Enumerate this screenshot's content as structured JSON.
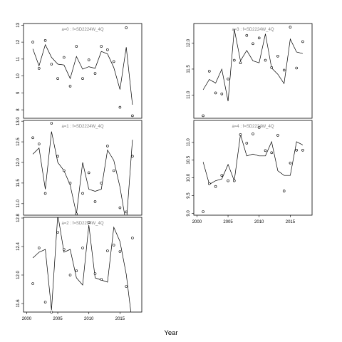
{
  "chart_data": {
    "type": "line",
    "xlabel": "Year",
    "panels": [
      {
        "label": "a=0 : f=SD2224W_4Q",
        "xlim": [
          1999.5,
          2018.5
        ],
        "ylim": [
          7.5,
          13.1
        ],
        "yticks": [
          8,
          9,
          10,
          11,
          12,
          13
        ],
        "xticks": [],
        "x": [
          2001,
          2002,
          2003,
          2004,
          2005,
          2006,
          2007,
          2008,
          2009,
          2010,
          2011,
          2012,
          2013,
          2014,
          2015,
          2016,
          2017
        ],
        "fitted": [
          11.6,
          10.6,
          11.85,
          11.1,
          10.7,
          10.65,
          9.85,
          11.15,
          10.4,
          10.55,
          10.45,
          11.45,
          11.3,
          10.5,
          9.2,
          11.7,
          8.3
        ],
        "observed": [
          12.0,
          10.45,
          12.1,
          10.7,
          9.85,
          11.1,
          9.4,
          11.75,
          9.85,
          10.95,
          10.15,
          11.75,
          11.55,
          10.85,
          8.15,
          12.85,
          7.65
        ]
      },
      {
        "label": "a=1 : f=SD2224W_4Q",
        "xlim": [
          1999.5,
          2018.5
        ],
        "ylim": [
          10.72,
          13.02
        ],
        "yticks": [
          11.0,
          11.5,
          12.0,
          12.5,
          13.0
        ],
        "xticks": [],
        "x": [
          2001,
          2002,
          2003,
          2004,
          2005,
          2006,
          2007,
          2008,
          2009,
          2010,
          2011,
          2012,
          2013,
          2014,
          2015,
          2016,
          2017
        ],
        "fitted": [
          12.2,
          12.35,
          11.35,
          12.75,
          12.0,
          11.8,
          11.45,
          10.75,
          12.0,
          11.35,
          11.3,
          11.35,
          12.3,
          12.05,
          11.4,
          10.5,
          12.55
        ],
        "observed": [
          12.6,
          12.45,
          11.25,
          12.95,
          12.15,
          11.8,
          11.5,
          10.75,
          11.25,
          11.75,
          11.05,
          11.5,
          12.4,
          11.8,
          10.9,
          10.8,
          12.15
        ]
      },
      {
        "label": "a=2 : f=SD2224W_4Q",
        "xlim": [
          1999.5,
          2018.5
        ],
        "ylim": [
          11.48,
          12.81
        ],
        "yticks": [
          11.6,
          12.0,
          12.4,
          12.8
        ],
        "xticks": [
          2000,
          2005,
          2010,
          2015
        ],
        "x": [
          2001,
          2002,
          2003,
          2004,
          2005,
          2006,
          2007,
          2008,
          2009,
          2010,
          2011,
          2012,
          2013,
          2014,
          2015,
          2016,
          2017
        ],
        "fitted": [
          12.24,
          12.32,
          12.36,
          11.51,
          12.85,
          12.32,
          12.36,
          11.96,
          11.86,
          12.7,
          11.96,
          11.93,
          11.9,
          12.67,
          12.47,
          12.01,
          11.3
        ],
        "observed": [
          11.88,
          12.38,
          11.62,
          11.48,
          12.6,
          12.36,
          12.0,
          12.06,
          12.38,
          12.74,
          12.02,
          11.94,
          12.34,
          12.42,
          12.33,
          11.84,
          12.52
        ]
      },
      {
        "label": "a=3 : f=SD2224W_4Q",
        "xlim": [
          1999.5,
          2018.5
        ],
        "ylim": [
          10.55,
          12.38
        ],
        "yticks": [
          11.0,
          11.5,
          12.0
        ],
        "xticks": [],
        "x": [
          2001,
          2002,
          2003,
          2004,
          2005,
          2006,
          2007,
          2008,
          2009,
          2010,
          2011,
          2012,
          2013,
          2014,
          2015,
          2016,
          2017
        ],
        "fitted": [
          11.1,
          11.3,
          11.23,
          11.5,
          10.88,
          12.27,
          11.66,
          11.86,
          11.66,
          11.62,
          12.18,
          11.52,
          11.4,
          11.22,
          12.08,
          11.83,
          11.8
        ],
        "observed": [
          10.6,
          11.46,
          11.04,
          11.02,
          11.31,
          11.67,
          11.62,
          12.15,
          11.99,
          12.1,
          11.67,
          11.53,
          11.75,
          11.48,
          12.31,
          11.52,
          12.03
        ]
      },
      {
        "label": "a=4 : f=SD2224W_4Q",
        "xlim": [
          1999.5,
          2018.5
        ],
        "ylim": [
          8.95,
          11.62
        ],
        "yticks": [
          9.0,
          9.5,
          10.0,
          10.5,
          11.0
        ],
        "xticks": [
          2000,
          2005,
          2010,
          2015
        ],
        "x": [
          2001,
          2002,
          2003,
          2004,
          2005,
          2006,
          2007,
          2008,
          2009,
          2010,
          2011,
          2012,
          2013,
          2014,
          2015,
          2016,
          2017
        ],
        "fitted": [
          10.45,
          9.82,
          9.92,
          9.97,
          10.38,
          9.92,
          11.22,
          10.62,
          10.67,
          10.62,
          10.62,
          11.02,
          10.2,
          10.07,
          10.07,
          11.02,
          10.93
        ],
        "observed": [
          9.05,
          9.84,
          9.76,
          10.07,
          9.92,
          9.92,
          11.22,
          10.98,
          11.24,
          11.42,
          10.77,
          10.71,
          11.2,
          9.63,
          10.42,
          10.78,
          10.78
        ]
      }
    ]
  }
}
